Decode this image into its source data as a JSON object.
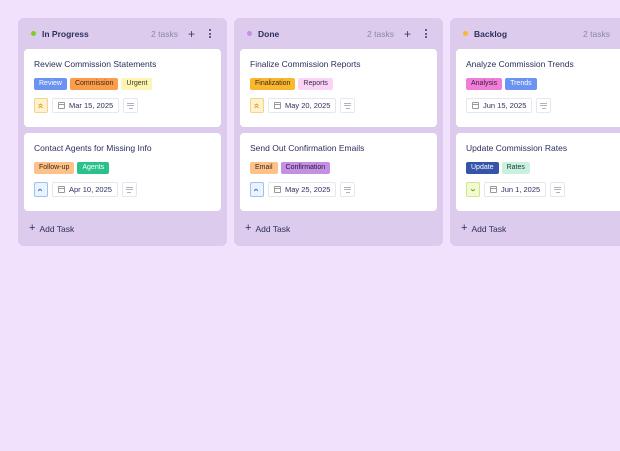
{
  "columns": [
    {
      "title": "In Progress",
      "count": "2 tasks",
      "dot_color": "#7ccc2c",
      "add_label": "+",
      "add_task_label": "Add Task",
      "cards": [
        {
          "title": "Review Commission Statements",
          "tags": [
            {
              "label": "Review",
              "bg": "#6b93f2",
              "fg": "#ffffff"
            },
            {
              "label": "Commission",
              "bg": "#fb9d4b",
              "fg": "#3b2a1a"
            },
            {
              "label": "Urgent",
              "bg": "#fdf5b4",
              "fg": "#3b3a1a"
            }
          ],
          "priority": {
            "icon": "double-chevron-up",
            "glyph": "»",
            "bg": "#fff3cf",
            "border": "#f5d48a",
            "fg": "#e0a020",
            "rotate": "-90deg"
          },
          "date": "Mar 15, 2025"
        },
        {
          "title": "Contact Agents for Missing Info",
          "tags": [
            {
              "label": "Follow-up",
              "bg": "#fdc189",
              "fg": "#3b2a1a"
            },
            {
              "label": "Agents",
              "bg": "#2ac28c",
              "fg": "#ffffff"
            }
          ],
          "priority": {
            "icon": "chevron-up",
            "glyph": "›",
            "bg": "#eaf3ff",
            "border": "#9bc2f0",
            "fg": "#3a6fc0",
            "rotate": "-90deg"
          },
          "date": "Apr 10, 2025"
        }
      ]
    },
    {
      "title": "Done",
      "count": "2 tasks",
      "dot_color": "#c98ee8",
      "add_label": "+",
      "add_task_label": "Add Task",
      "cards": [
        {
          "title": "Finalize Commission Reports",
          "tags": [
            {
              "label": "Finalization",
              "bg": "#fbb72e",
              "fg": "#3b2a1a"
            },
            {
              "label": "Reports",
              "bg": "#fbd3f5",
              "fg": "#3a2a4a"
            }
          ],
          "priority": {
            "icon": "double-chevron-up",
            "glyph": "»",
            "bg": "#fff3cf",
            "border": "#f5d48a",
            "fg": "#e0a020",
            "rotate": "-90deg"
          },
          "date": "May 20, 2025"
        },
        {
          "title": "Send Out Confirmation Emails",
          "tags": [
            {
              "label": "Email",
              "bg": "#fdc189",
              "fg": "#3b2a1a"
            },
            {
              "label": "Confirmation",
              "bg": "#c58fe4",
              "fg": "#2a1a3a"
            }
          ],
          "priority": {
            "icon": "chevron-up",
            "glyph": "›",
            "bg": "#eaf3ff",
            "border": "#9bc2f0",
            "fg": "#3a6fc0",
            "rotate": "-90deg"
          },
          "date": "May 25, 2025"
        }
      ]
    },
    {
      "title": "Backlog",
      "count": "2 tasks",
      "dot_color": "#fbb72e",
      "add_label": "+",
      "add_task_label": "Add Task",
      "cards": [
        {
          "title": "Analyze Commission Trends",
          "tags": [
            {
              "label": "Analysis",
              "bg": "#f07ed8",
              "fg": "#3a1a3a"
            },
            {
              "label": "Trends",
              "bg": "#6b93f2",
              "fg": "#ffffff"
            }
          ],
          "priority": null,
          "date": "Jun 15, 2025"
        },
        {
          "title": "Update Commission Rates",
          "tags": [
            {
              "label": "Update",
              "bg": "#3553a8",
              "fg": "#ffffff"
            },
            {
              "label": "Rates",
              "bg": "#c9f1e2",
              "fg": "#1a3a2a"
            }
          ],
          "priority": {
            "icon": "chevron-down",
            "glyph": "›",
            "bg": "#f1fad2",
            "border": "#cfe68a",
            "fg": "#7aa020",
            "rotate": "90deg"
          },
          "date": "Jun 1, 2025"
        }
      ]
    }
  ]
}
